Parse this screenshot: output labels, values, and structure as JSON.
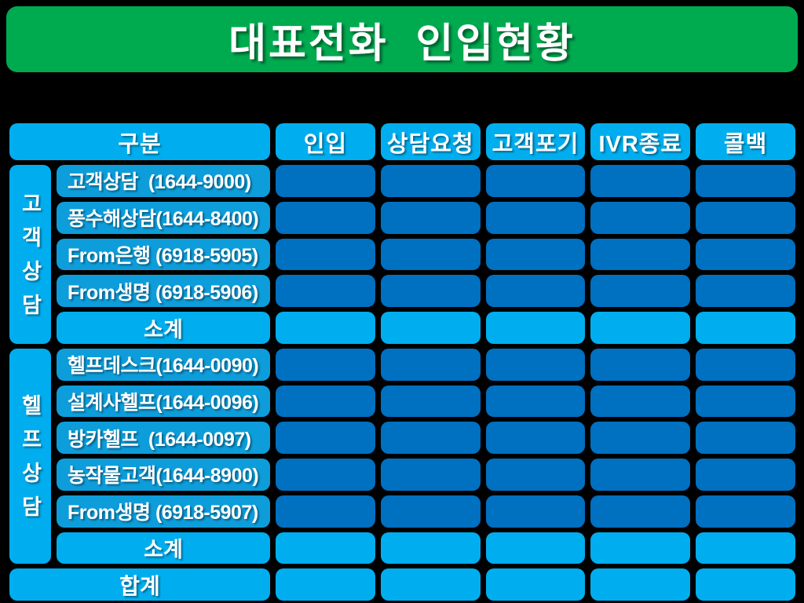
{
  "title": "대표전화  인입현황",
  "colors": {
    "background": "#000000",
    "banner_green": "#00AB50",
    "header_cyan": "#00AEEF",
    "row_label_cyan": "#0D9DDB",
    "data_blue": "#0070C0",
    "text_white": "#FFFFFF"
  },
  "table": {
    "columns": [
      "구분",
      "인입",
      "상담요청",
      "고객포기",
      "IVR종료",
      "콜백"
    ],
    "groups": [
      {
        "label": "고객상담",
        "rows": [
          {
            "label": "고객상담  (1644-9000)",
            "subtotal": false,
            "values": [
              "",
              "",
              "",
              "",
              ""
            ]
          },
          {
            "label": "풍수해상담(1644-8400)",
            "subtotal": false,
            "values": [
              "",
              "",
              "",
              "",
              ""
            ]
          },
          {
            "label": "From은행 (6918-5905)",
            "subtotal": false,
            "values": [
              "",
              "",
              "",
              "",
              ""
            ]
          },
          {
            "label": "From생명 (6918-5906)",
            "subtotal": false,
            "values": [
              "",
              "",
              "",
              "",
              ""
            ]
          },
          {
            "label": "소계",
            "subtotal": true,
            "values": [
              "",
              "",
              "",
              "",
              ""
            ]
          }
        ]
      },
      {
        "label": "헬프상담",
        "rows": [
          {
            "label": "헬프데스크(1644-0090)",
            "subtotal": false,
            "values": [
              "",
              "",
              "",
              "",
              ""
            ]
          },
          {
            "label": "설계사헬프(1644-0096)",
            "subtotal": false,
            "values": [
              "",
              "",
              "",
              "",
              ""
            ]
          },
          {
            "label": "방카헬프  (1644-0097)",
            "subtotal": false,
            "values": [
              "",
              "",
              "",
              "",
              ""
            ]
          },
          {
            "label": "농작물고객(1644-8900)",
            "subtotal": false,
            "values": [
              "",
              "",
              "",
              "",
              ""
            ]
          },
          {
            "label": "From생명 (6918-5907)",
            "subtotal": false,
            "values": [
              "",
              "",
              "",
              "",
              ""
            ]
          },
          {
            "label": "소계",
            "subtotal": true,
            "values": [
              "",
              "",
              "",
              "",
              ""
            ]
          }
        ]
      }
    ],
    "total_row": {
      "label": "합계",
      "values": [
        "",
        "",
        "",
        "",
        ""
      ]
    }
  }
}
